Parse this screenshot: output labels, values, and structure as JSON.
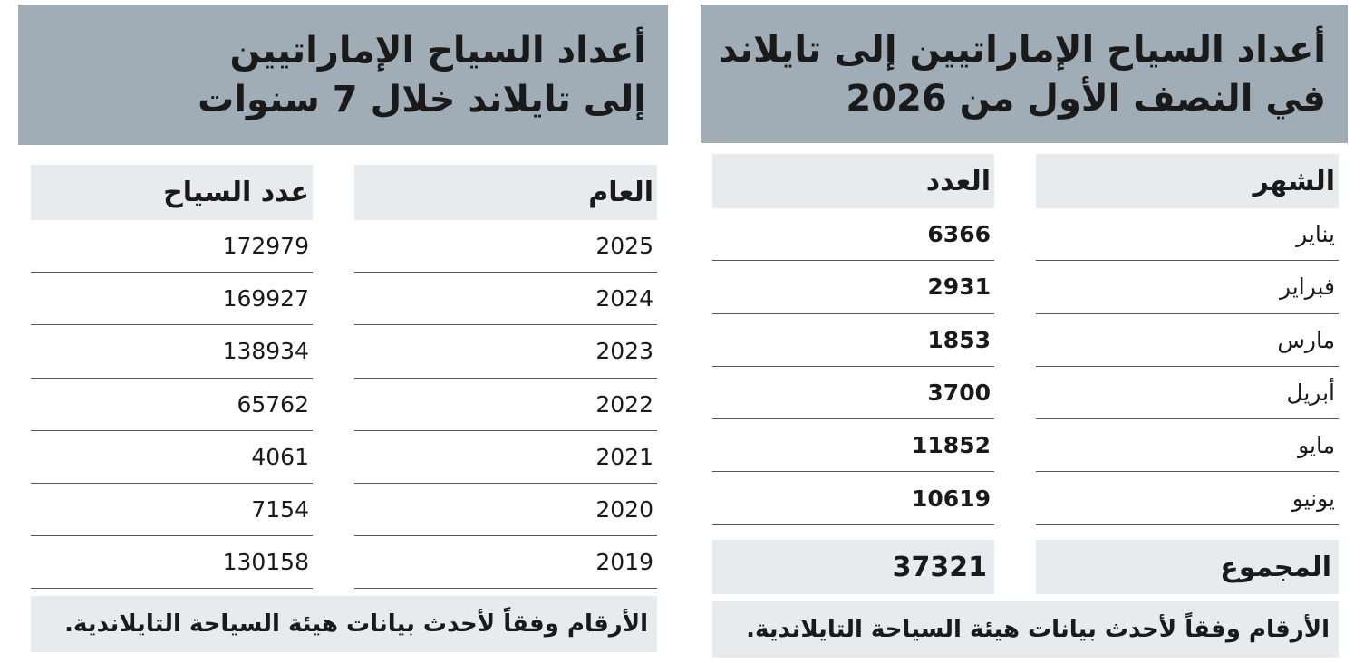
{
  "right": {
    "title": [
      "أعداد السياح الإماراتيين إلى تايلاند",
      "في النصف الأول من 2026"
    ],
    "header": [
      "الشهر",
      "العدد"
    ],
    "rows": [
      [
        "يناير",
        6366
      ],
      [
        "فبراير",
        2931
      ],
      [
        "مارس",
        1853
      ],
      [
        "أبريل",
        3700
      ],
      [
        "مايو",
        11852
      ],
      [
        "يونيو",
        10619
      ]
    ],
    "total": [
      "المجموع",
      37321
    ],
    "note": "الأرقام وفقاً لأحدث بيانات هيئة السياحة التايلاندية."
  },
  "left": {
    "title": [
      "أعداد السياح الإماراتيين",
      "إلى تايلاند خلال 7 سنوات"
    ],
    "header": [
      "العام",
      "عدد السياح"
    ],
    "rows": [
      [
        2025,
        172979
      ],
      [
        2024,
        169927
      ],
      [
        2023,
        138934
      ],
      [
        2022,
        65762
      ],
      [
        2021,
        4061
      ],
      [
        2020,
        7154
      ],
      [
        2019,
        130158
      ]
    ],
    "note": "الأرقام وفقاً لأحدث بيانات هيئة السياحة التايلاندية."
  }
}
